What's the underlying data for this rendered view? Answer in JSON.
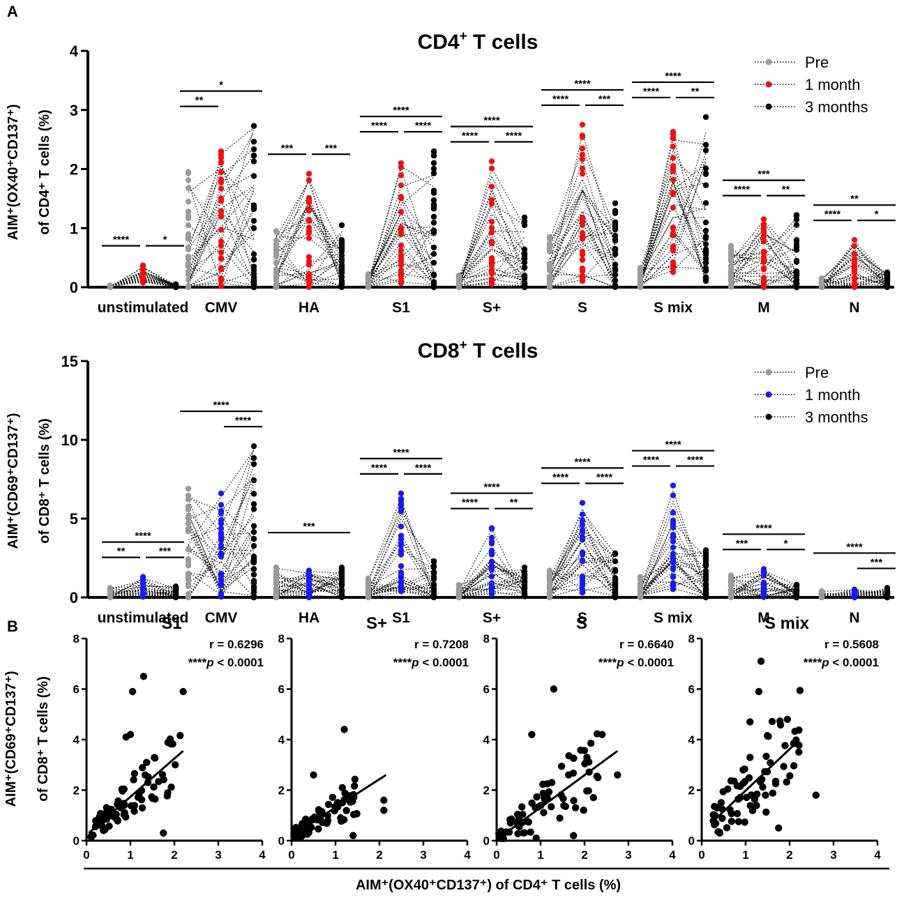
{
  "panels": {
    "a": "A",
    "b": "B"
  },
  "colors": {
    "pre": "#9b9b9b",
    "cd4_1m": "#ee1111",
    "cd8_1m": "#1a1aee",
    "m3": "#000000"
  },
  "chart_data": [
    {
      "type": "scatter",
      "id": "cd4",
      "title": "CD4",
      "title_sup": "+",
      "title_rest": " T cells",
      "ylabel_line1": "AIM⁺(OX40⁺CD137⁺)",
      "ylabel_line2": "of CD4⁺ T cells (%)",
      "ylim": [
        0,
        4
      ],
      "yticks": [
        "0",
        "1",
        "2",
        "3",
        "4"
      ],
      "categories": [
        "unstimulated",
        "CMV",
        "HA",
        "S1",
        "S+",
        "S",
        "S mix",
        "M",
        "N"
      ],
      "legend": [
        "Pre",
        "1 month",
        "3 months"
      ],
      "groups": [
        {
          "pre": [
            0.03,
            0.0
          ],
          "m1": [
            0.37,
            0.08
          ],
          "m3": [
            0.05,
            0.0
          ],
          "sig": [
            {
              "a": 0,
              "b": 1,
              "t": "****"
            },
            {
              "a": 1,
              "b": 2,
              "t": "*"
            }
          ]
        },
        {
          "pre": [
            1.95,
            0.0
          ],
          "m1": [
            2.3,
            0.0
          ],
          "m3": [
            2.73,
            0.0
          ],
          "sig": [
            {
              "a": 0,
              "b": 1,
              "t": "**"
            },
            {
              "a": 0,
              "b": 2,
              "t": "*"
            }
          ]
        },
        {
          "pre": [
            0.95,
            0.0
          ],
          "m1": [
            1.92,
            0.0
          ],
          "m3": [
            1.05,
            0.0
          ],
          "sig": [
            {
              "a": 0,
              "b": 1,
              "t": "***"
            },
            {
              "a": 1,
              "b": 2,
              "t": "***"
            }
          ]
        },
        {
          "pre": [
            0.22,
            0.0
          ],
          "m1": [
            2.1,
            0.07
          ],
          "m3": [
            2.3,
            0.0
          ],
          "sig": [
            {
              "a": 0,
              "b": 1,
              "t": "****"
            },
            {
              "a": 1,
              "b": 2,
              "t": "****"
            },
            {
              "a": 0,
              "b": 2,
              "t": "****"
            }
          ]
        },
        {
          "pre": [
            0.2,
            0.0
          ],
          "m1": [
            2.13,
            0.05
          ],
          "m3": [
            1.18,
            0.0
          ],
          "sig": [
            {
              "a": 0,
              "b": 1,
              "t": "****"
            },
            {
              "a": 1,
              "b": 2,
              "t": "****"
            },
            {
              "a": 0,
              "b": 2,
              "t": "****"
            }
          ]
        },
        {
          "pre": [
            0.85,
            0.0
          ],
          "m1": [
            2.75,
            0.1
          ],
          "m3": [
            1.42,
            0.0
          ],
          "sig": [
            {
              "a": 0,
              "b": 1,
              "t": "****"
            },
            {
              "a": 1,
              "b": 2,
              "t": "***"
            },
            {
              "a": 0,
              "b": 2,
              "t": "****"
            }
          ]
        },
        {
          "pre": [
            0.33,
            0.0
          ],
          "m1": [
            2.63,
            0.25
          ],
          "m3": [
            2.88,
            0.1
          ],
          "sig": [
            {
              "a": 0,
              "b": 1,
              "t": "****"
            },
            {
              "a": 1,
              "b": 2,
              "t": "**"
            },
            {
              "a": 0,
              "b": 2,
              "t": "****"
            }
          ]
        },
        {
          "pre": [
            0.7,
            0.0
          ],
          "m1": [
            1.15,
            0.0
          ],
          "m3": [
            1.22,
            0.0
          ],
          "sig": [
            {
              "a": 0,
              "b": 1,
              "t": "****"
            },
            {
              "a": 1,
              "b": 2,
              "t": "**"
            },
            {
              "a": 0,
              "b": 2,
              "t": "***"
            }
          ]
        },
        {
          "pre": [
            0.15,
            0.0
          ],
          "m1": [
            0.8,
            0.0
          ],
          "m3": [
            0.25,
            0.0
          ],
          "sig": [
            {
              "a": 0,
              "b": 1,
              "t": "****"
            },
            {
              "a": 1,
              "b": 2,
              "t": "*"
            },
            {
              "a": 0,
              "b": 2,
              "t": "**"
            }
          ]
        }
      ]
    },
    {
      "type": "scatter",
      "id": "cd8",
      "title": "CD8",
      "title_sup": "+",
      "title_rest": " T cells",
      "ylabel_line1": "AIM⁺(CD69⁺CD137⁺)",
      "ylabel_line2": "of CD8⁺ T cells (%)",
      "ylim": [
        0,
        15
      ],
      "yticks": [
        "0",
        "5",
        "10",
        "15"
      ],
      "categories": [
        "unstimulated",
        "CMV",
        "HA",
        "S1",
        "S+",
        "S",
        "S mix",
        "M",
        "N"
      ],
      "legend": [
        "Pre",
        "1 month",
        "3 months"
      ],
      "groups": [
        {
          "pre": [
            0.6,
            0.0
          ],
          "m1": [
            1.3,
            0.0
          ],
          "m3": [
            0.7,
            0.0
          ],
          "sig": [
            {
              "a": 0,
              "b": 1,
              "t": "**"
            },
            {
              "a": 1,
              "b": 2,
              "t": "***"
            },
            {
              "a": 0,
              "b": 2,
              "t": "****"
            }
          ]
        },
        {
          "pre": [
            6.9,
            0.0
          ],
          "m1": [
            6.6,
            0.0
          ],
          "m3": [
            9.6,
            0.0
          ],
          "sig": [
            {
              "a": 1,
              "b": 2,
              "t": "****"
            },
            {
              "a": 0,
              "b": 2,
              "t": "****"
            }
          ]
        },
        {
          "pre": [
            1.9,
            0.0
          ],
          "m1": [
            1.7,
            0.0
          ],
          "m3": [
            1.9,
            0.0
          ],
          "sig": [
            {
              "a": 0,
              "b": 2,
              "t": "***"
            }
          ]
        },
        {
          "pre": [
            1.2,
            0.0
          ],
          "m1": [
            6.6,
            0.3
          ],
          "m3": [
            2.3,
            0.0
          ],
          "sig": [
            {
              "a": 0,
              "b": 1,
              "t": "****"
            },
            {
              "a": 1,
              "b": 2,
              "t": "****"
            },
            {
              "a": 0,
              "b": 2,
              "t": "****"
            }
          ]
        },
        {
          "pre": [
            0.8,
            0.0
          ],
          "m1": [
            4.4,
            0.2
          ],
          "m3": [
            1.9,
            0.0
          ],
          "sig": [
            {
              "a": 0,
              "b": 1,
              "t": "****"
            },
            {
              "a": 1,
              "b": 2,
              "t": "**"
            },
            {
              "a": 0,
              "b": 2,
              "t": "****"
            }
          ]
        },
        {
          "pre": [
            1.7,
            0.0
          ],
          "m1": [
            6.0,
            0.3
          ],
          "m3": [
            2.8,
            0.0
          ],
          "sig": [
            {
              "a": 0,
              "b": 1,
              "t": "****"
            },
            {
              "a": 1,
              "b": 2,
              "t": "****"
            },
            {
              "a": 0,
              "b": 2,
              "t": "****"
            }
          ]
        },
        {
          "pre": [
            1.3,
            0.0
          ],
          "m1": [
            7.1,
            0.5
          ],
          "m3": [
            3.0,
            0.0
          ],
          "sig": [
            {
              "a": 0,
              "b": 1,
              "t": "****"
            },
            {
              "a": 1,
              "b": 2,
              "t": "****"
            },
            {
              "a": 0,
              "b": 2,
              "t": "****"
            }
          ]
        },
        {
          "pre": [
            1.4,
            0.0
          ],
          "m1": [
            1.8,
            0.0
          ],
          "m3": [
            0.8,
            0.0
          ],
          "sig": [
            {
              "a": 0,
              "b": 1,
              "t": "***"
            },
            {
              "a": 1,
              "b": 2,
              "t": "*"
            },
            {
              "a": 0,
              "b": 2,
              "t": "****"
            }
          ]
        },
        {
          "pre": [
            0.4,
            0.0
          ],
          "m1": [
            0.5,
            0.0
          ],
          "m3": [
            0.6,
            0.0
          ],
          "sig": [
            {
              "a": 1,
              "b": 2,
              "t": "***"
            },
            {
              "a": 0,
              "b": 2,
              "t": "****"
            }
          ]
        }
      ]
    },
    {
      "type": "scatter",
      "id": "corr",
      "xlabel": "AIM⁺(OX40⁺CD137⁺) of CD4⁺ T cells (%)",
      "ylabel_line1": "AIM⁺(CD69⁺CD137⁺)",
      "ylabel_line2": "of CD8⁺ T cells (%)",
      "xlim": [
        0,
        4
      ],
      "ylim": [
        0,
        8
      ],
      "xticks": [
        "0",
        "1",
        "2",
        "3",
        "4"
      ],
      "yticks": [
        "0",
        "2",
        "4",
        "6",
        "8"
      ],
      "pstars": "****",
      "pvalue": " < 0.0001",
      "subplots": [
        {
          "title": "S1",
          "r": "r = 0.6296",
          "fit": [
            [
              0.05,
              0.3
            ],
            [
              2.2,
              3.55
            ]
          ],
          "spread": [
            2.1,
            0.55
          ],
          "extra": [
            [
              1.0,
              4.2
            ],
            [
              1.05,
              5.9
            ],
            [
              1.3,
              6.5
            ],
            [
              2.2,
              5.9
            ],
            [
              0.9,
              4.1
            ],
            [
              1.75,
              0.3
            ]
          ]
        },
        {
          "title": "S+",
          "r": "r = 0.7208",
          "fit": [
            [
              0.05,
              0.25
            ],
            [
              2.15,
              2.6
            ]
          ],
          "spread": [
            1.5,
            0.45
          ],
          "extra": [
            [
              1.2,
              4.4
            ],
            [
              2.1,
              1.6
            ],
            [
              2.1,
              1.2
            ],
            [
              0.5,
              2.6
            ],
            [
              1.4,
              0.2
            ]
          ]
        },
        {
          "title": "S",
          "r": "r = 0.6640",
          "fit": [
            [
              0.05,
              0.1
            ],
            [
              2.75,
              3.55
            ]
          ],
          "spread": [
            2.3,
            0.6
          ],
          "extra": [
            [
              0.8,
              4.2
            ],
            [
              1.3,
              6.0
            ],
            [
              2.4,
              4.2
            ],
            [
              2.75,
              2.6
            ],
            [
              1.75,
              0.2
            ],
            [
              0.9,
              0.1
            ]
          ]
        },
        {
          "title": "S mix",
          "r": "r = 0.5608",
          "fit": [
            [
              0.25,
              0.75
            ],
            [
              2.2,
              3.95
            ]
          ],
          "spread": [
            2.0,
            0.9
          ],
          "extra": [
            [
              1.35,
              7.1
            ],
            [
              1.3,
              5.9
            ],
            [
              1.1,
              4.7
            ],
            [
              1.75,
              0.5
            ],
            [
              2.6,
              1.8
            ],
            [
              0.3,
              1.0
            ]
          ]
        }
      ]
    }
  ]
}
